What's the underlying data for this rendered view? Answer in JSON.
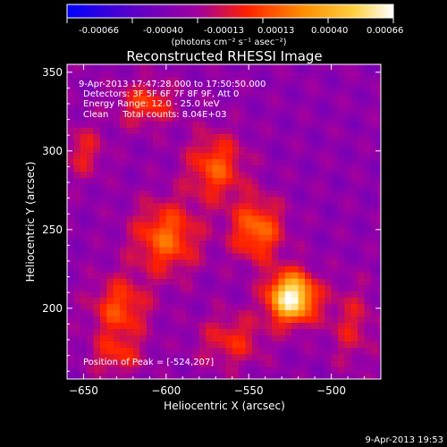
{
  "colorbar": {
    "ticks": [
      "-0.00066",
      "-0.00040",
      "-0.00013",
      "0.00013",
      "0.00040",
      "0.00066"
    ],
    "units": "(photons cm⁻² s⁻¹ asec⁻²)",
    "colors": [
      "#0000ff",
      "#5a00c8",
      "#a000a0",
      "#ff2000",
      "#ff8c00",
      "#ffd040",
      "#ffffff"
    ]
  },
  "chart_data": {
    "type": "heatmap",
    "title": "Reconstructed RHESSI Image",
    "xlabel": "Heliocentric X (arcsec)",
    "ylabel": "Heliocentric Y (arcsec)",
    "xlim": [
      -660,
      -470
    ],
    "ylim": [
      155,
      355
    ],
    "x_ticks": [
      -650,
      -600,
      -550,
      -500
    ],
    "y_ticks": [
      200,
      250,
      300,
      350
    ],
    "pixel_size_arcsec": 4,
    "peak_position": [
      -524,
      207
    ],
    "peak_value": 0.00066,
    "background_value": -0.0002,
    "sources": [
      {
        "x": -524,
        "y": 207,
        "amp": 0.00086,
        "sx": 10,
        "sy": 11
      },
      {
        "x": -545,
        "y": 250,
        "amp": 0.00042,
        "sx": 11,
        "sy": 14
      },
      {
        "x": -600,
        "y": 245,
        "amp": 0.0004,
        "sx": 14,
        "sy": 16
      },
      {
        "x": -628,
        "y": 200,
        "amp": 0.00034,
        "sx": 12,
        "sy": 14
      },
      {
        "x": -570,
        "y": 290,
        "amp": 0.00036,
        "sx": 12,
        "sy": 15
      },
      {
        "x": -612,
        "y": 330,
        "amp": 0.0003,
        "sx": 12,
        "sy": 10
      },
      {
        "x": -560,
        "y": 180,
        "amp": 0.00025,
        "sx": 14,
        "sy": 12
      },
      {
        "x": -650,
        "y": 300,
        "amp": 0.00022,
        "sx": 9,
        "sy": 12
      },
      {
        "x": -488,
        "y": 190,
        "amp": 0.0002,
        "sx": 10,
        "sy": 18
      },
      {
        "x": -630,
        "y": 170,
        "amp": 0.00024,
        "sx": 11,
        "sy": 9
      }
    ],
    "annotations": [
      "9-Apr-2013 17:47:28.000 to 17:50:50.000",
      "Detectors: 3F 5F 6F 7F 8F 9F, Att 0",
      "Energy Range: 12.0 - 25.0 keV",
      "Clean     Total counts: 8.04E+03"
    ],
    "peak_label": "Position of Peak = [-524,207]"
  },
  "footer_timestamp": "9-Apr-2013 19:53"
}
